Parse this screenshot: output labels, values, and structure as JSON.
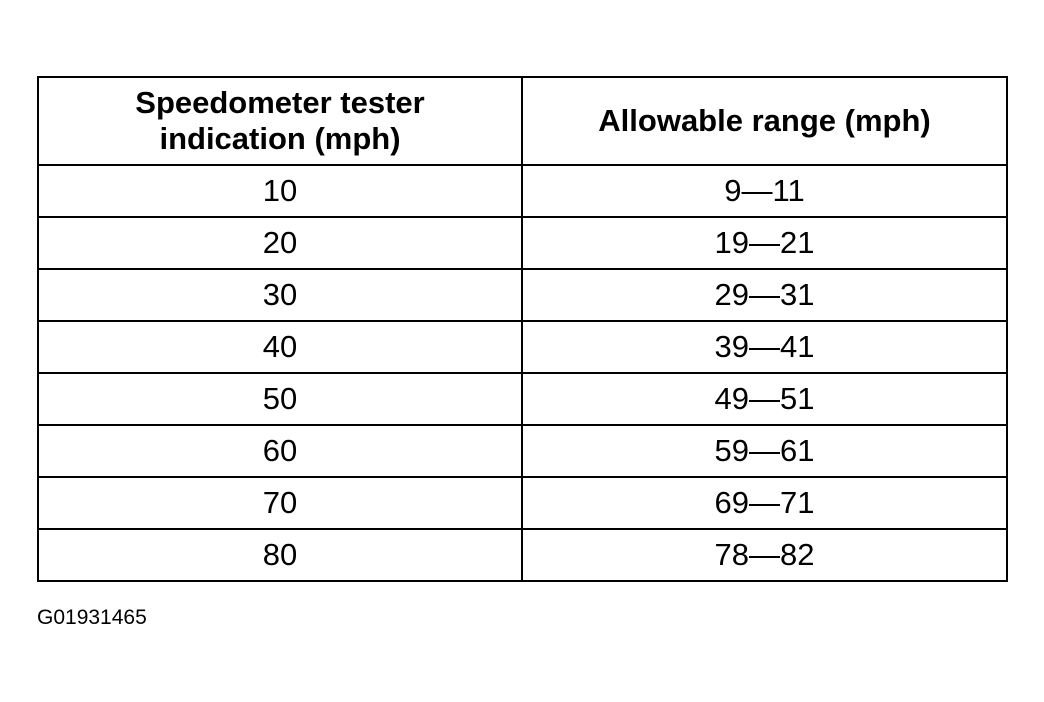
{
  "table": {
    "header": [
      "Speedometer tester indication (mph)",
      "Allowable range (mph)"
    ],
    "rows": [
      [
        10,
        "9—11"
      ],
      [
        20,
        "19—21"
      ],
      [
        30,
        "29—31"
      ],
      [
        40,
        "39—41"
      ],
      [
        50,
        "49—51"
      ],
      [
        60,
        "59—61"
      ],
      [
        70,
        "69—71"
      ],
      [
        80,
        "78—82"
      ]
    ]
  },
  "footer": {
    "code": "G01931465"
  }
}
